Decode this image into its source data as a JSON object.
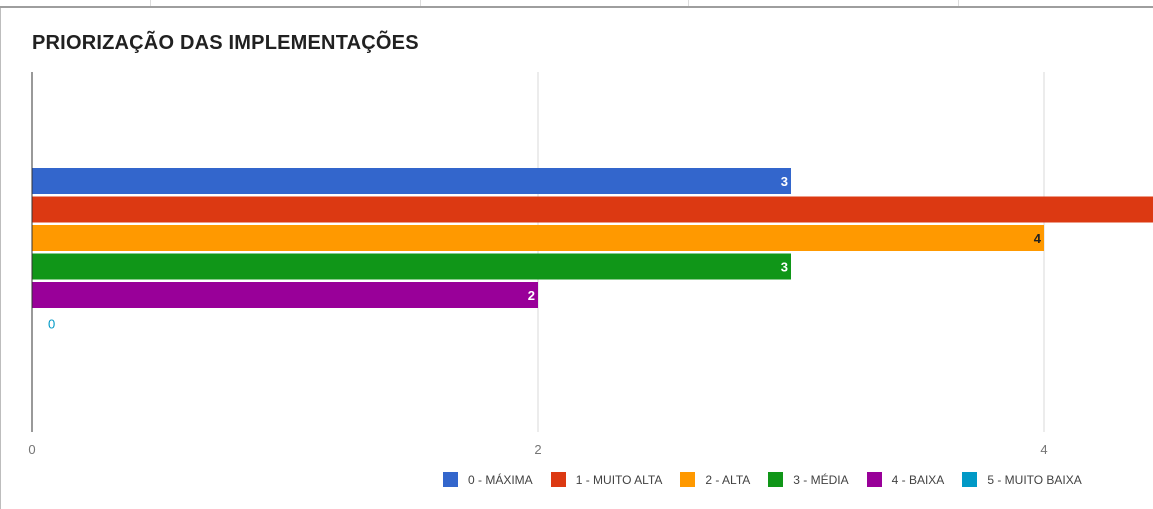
{
  "page": {
    "title": "PRIORIZAÇÃO DAS IMPLEMENTAÇÕES"
  },
  "chart_data": {
    "type": "bar",
    "orientation": "horizontal",
    "title": "PRIORIZAÇÃO DAS IMPLEMENTAÇÕES",
    "xlabel": "",
    "ylabel": "",
    "x_ticks": [
      "0",
      "2",
      "4"
    ],
    "xlim": [
      0,
      4.44
    ],
    "grid": true,
    "legend_position": "bottom-right",
    "series": [
      {
        "name": "0 - MÁXIMA",
        "value": 3,
        "color": "#3366cc",
        "label": "3",
        "label_color": "#ffffff"
      },
      {
        "name": "1 - MUITO ALTA",
        "value": 5,
        "color": "#dc3912",
        "label": "",
        "label_color": "#ffffff"
      },
      {
        "name": "2 - ALTA",
        "value": 4,
        "color": "#ff9900",
        "label": "4",
        "label_color": "#212121"
      },
      {
        "name": "3 - MÉDIA",
        "value": 3,
        "color": "#109618",
        "label": "3",
        "label_color": "#ffffff"
      },
      {
        "name": "4 - BAIXA",
        "value": 2,
        "color": "#990099",
        "label": "2",
        "label_color": "#ffffff"
      },
      {
        "name": "5 - MUITO BAIXA",
        "value": 0,
        "color": "#0099c6",
        "label": "0",
        "label_color": "#0099c6"
      }
    ]
  }
}
